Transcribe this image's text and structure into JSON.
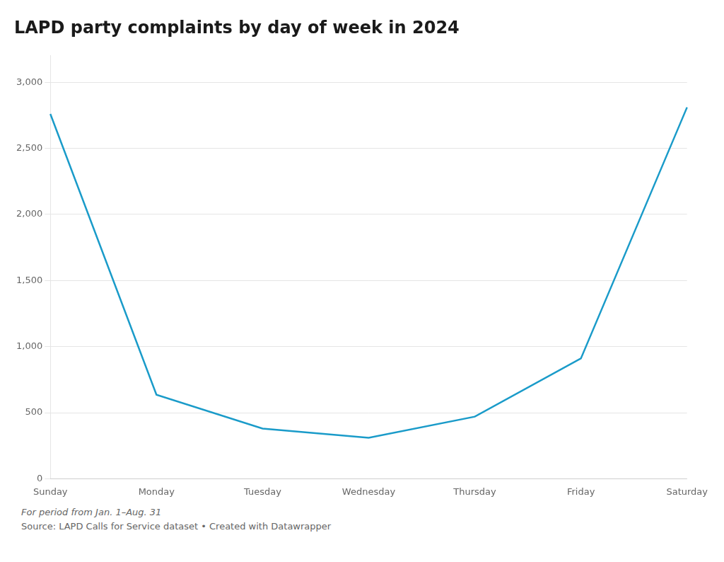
{
  "chart_data": {
    "type": "line",
    "title": "LAPD party complaints by day of week in 2024",
    "categories": [
      "Sunday",
      "Monday",
      "Tuesday",
      "Wednesday",
      "Thursday",
      "Friday",
      "Saturday"
    ],
    "values": [
      2760,
      635,
      380,
      310,
      470,
      910,
      2810
    ],
    "color": "#1a9bc9",
    "ylim": [
      0,
      3200
    ],
    "yticks": [
      0,
      500,
      {
        "value": 1000,
        "label": "1,000"
      },
      {
        "value": 1500,
        "label": "1,500"
      },
      {
        "value": 2000,
        "label": "2,000"
      },
      {
        "value": 2500,
        "label": "2,500"
      },
      {
        "value": 3000,
        "label": "3,000"
      }
    ],
    "grid": true,
    "annotations": [
      "For period from Jan. 1–Aug. 31",
      "Source: LAPD Calls for Service dataset • Created with Datawrapper"
    ]
  }
}
